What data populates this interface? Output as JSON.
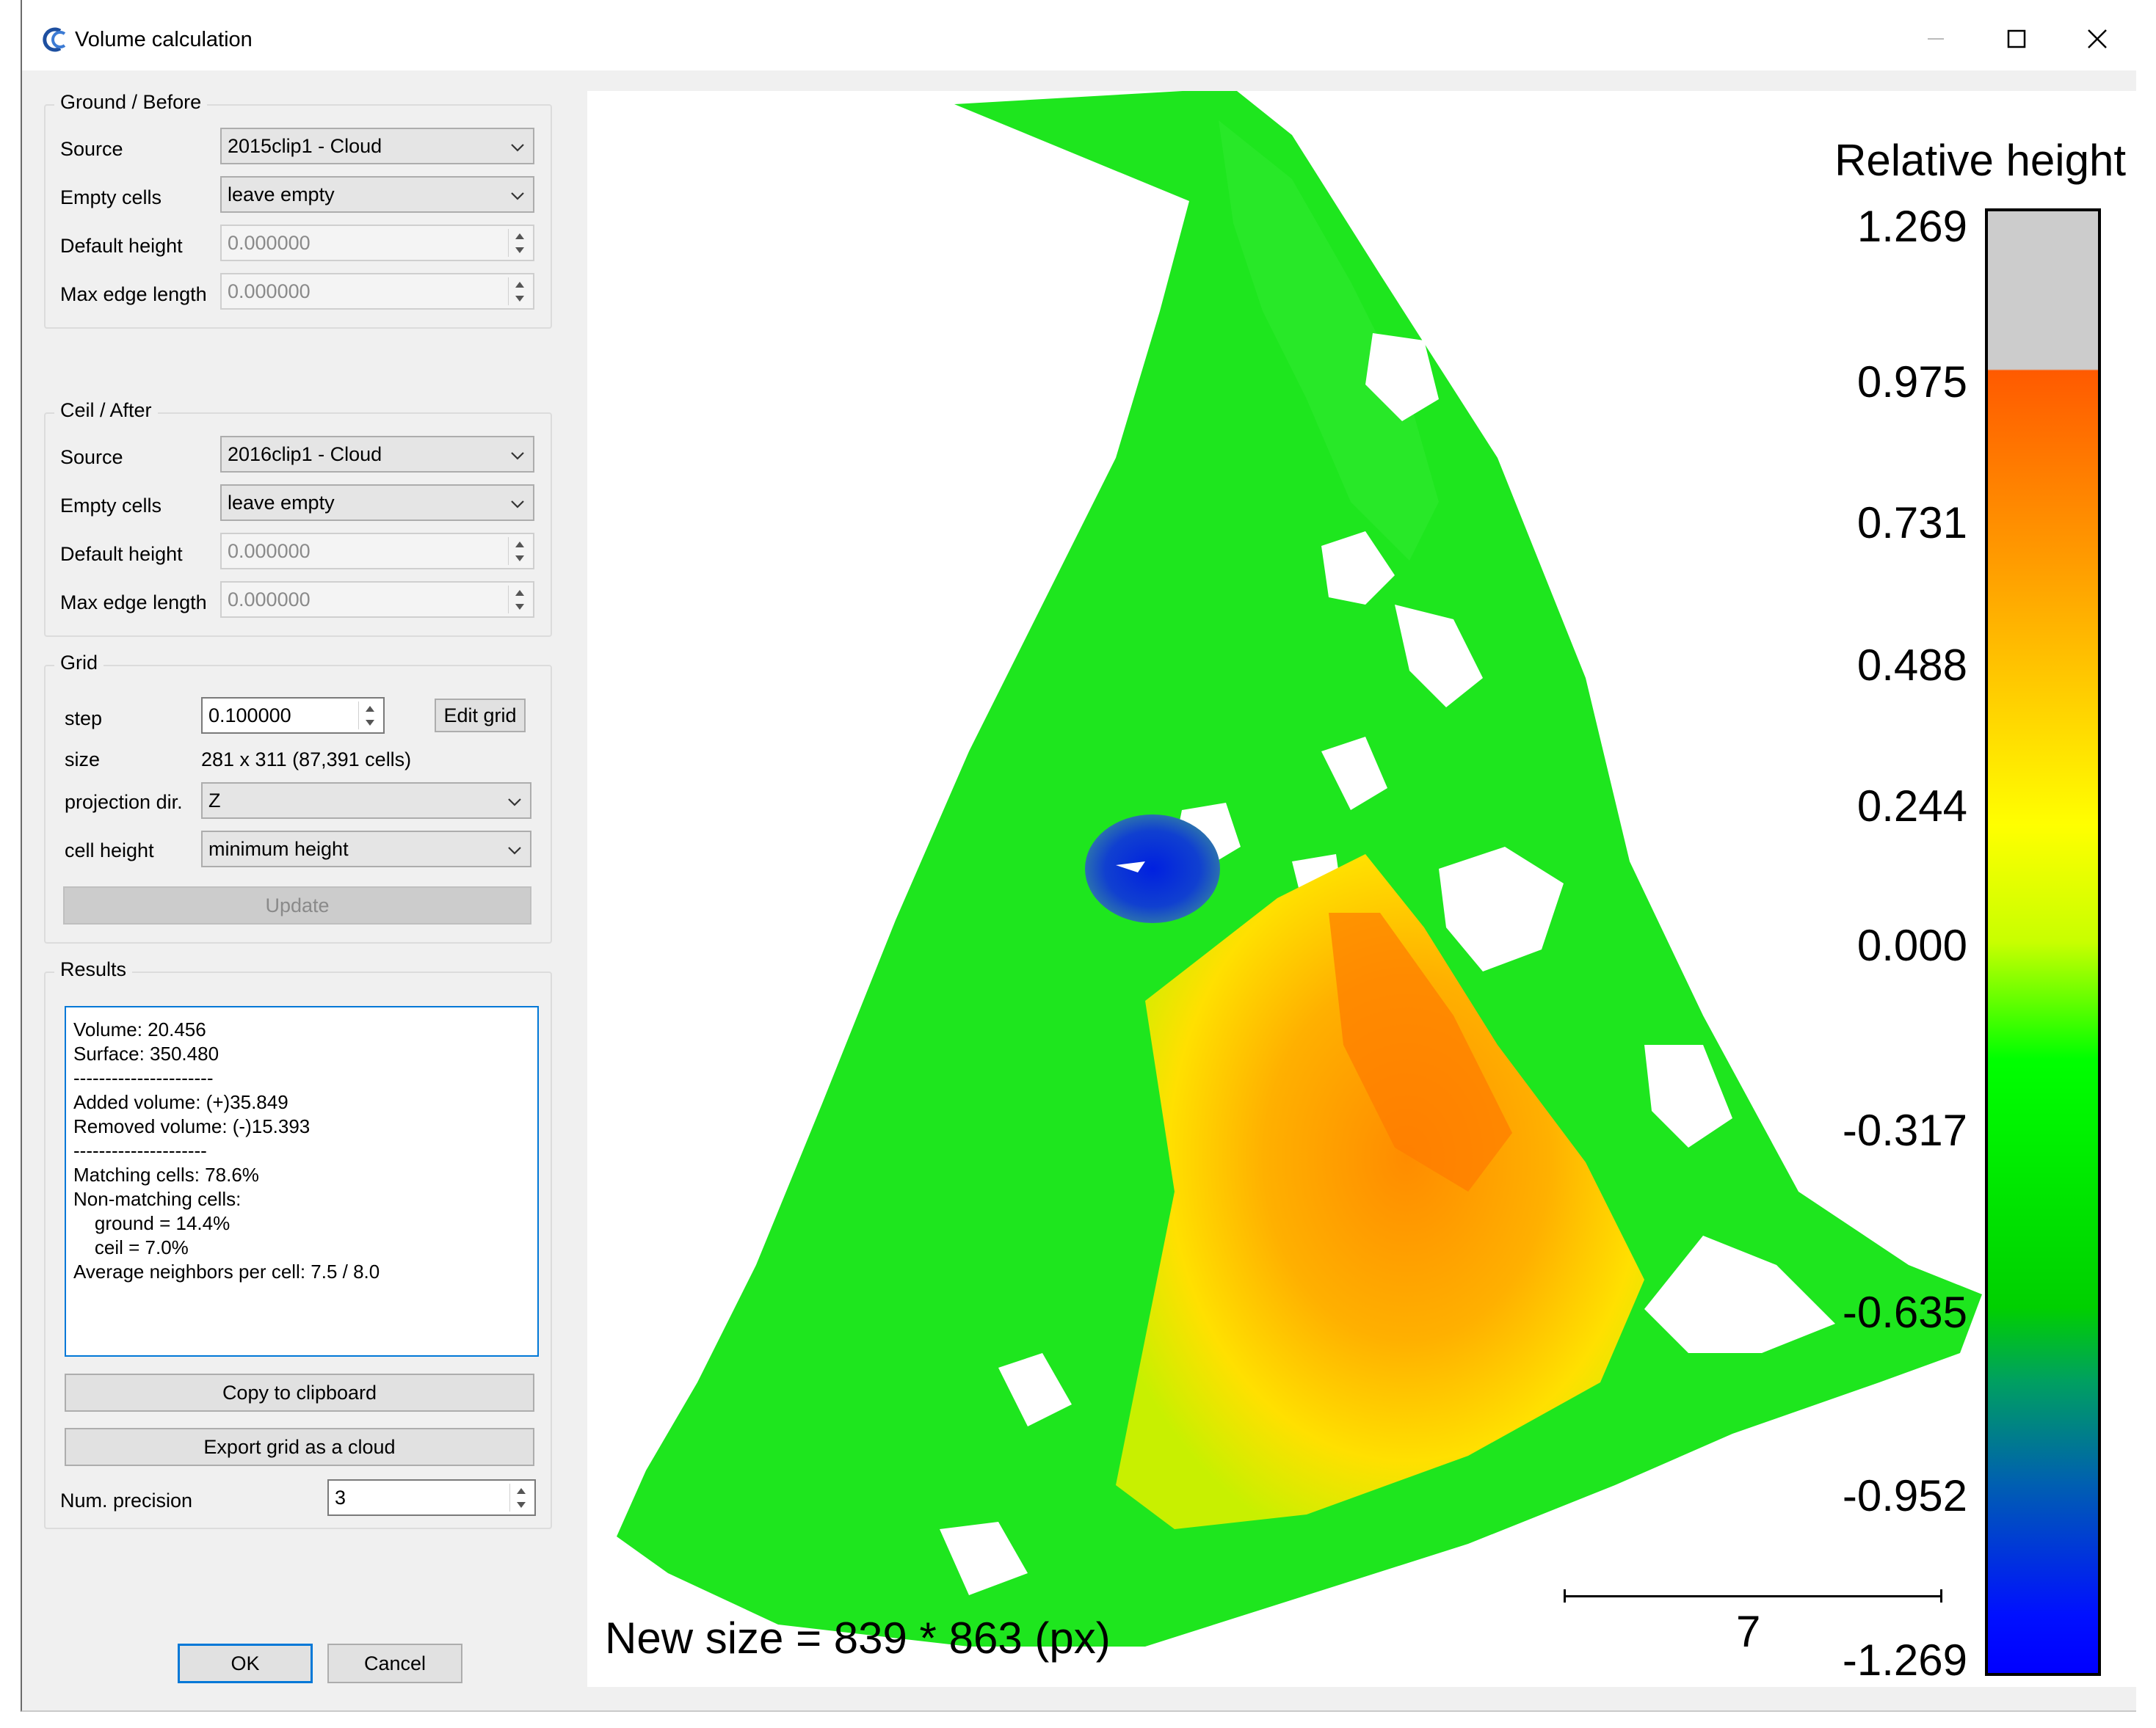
{
  "window": {
    "title": "Volume calculation"
  },
  "ground": {
    "title": "Ground / Before",
    "source_label": "Source",
    "source_value": "2015clip1 - Cloud",
    "empty_label": "Empty cells",
    "empty_value": "leave empty",
    "default_height_label": "Default height",
    "default_height_value": "0.000000",
    "max_edge_label": "Max edge length",
    "max_edge_value": "0.000000"
  },
  "ceil": {
    "title": "Ceil / After",
    "source_label": "Source",
    "source_value": "2016clip1 - Cloud",
    "empty_label": "Empty cells",
    "empty_value": "leave empty",
    "default_height_label": "Default height",
    "default_height_value": "0.000000",
    "max_edge_label": "Max edge length",
    "max_edge_value": "0.000000"
  },
  "grid": {
    "title": "Grid",
    "step_label": "step",
    "step_value": "0.100000",
    "edit_grid": "Edit grid",
    "size_label": "size",
    "size_value": "281 x 311 (87,391 cells)",
    "projection_label": "projection dir.",
    "projection_value": "Z",
    "cell_height_label": "cell height",
    "cell_height_value": "minimum height",
    "update": "Update"
  },
  "results": {
    "title": "Results",
    "text": "Volume: 20.456\nSurface: 350.480\n----------------------\nAdded volume: (+)35.849\nRemoved volume: (-)15.393\n---------------------\nMatching cells: 78.6%\nNon-matching cells:\n    ground = 14.4%\n    ceil = 7.0%\nAverage neighbors per cell: 7.5 / 8.0",
    "copy": "Copy to clipboard",
    "export": "Export grid as a cloud",
    "precision_label": "Num. precision",
    "precision_value": "3"
  },
  "footer": {
    "ok": "OK",
    "cancel": "Cancel"
  },
  "viewer": {
    "scale_title": "Relative height",
    "ticks": [
      "1.269",
      "0.975",
      "0.731",
      "0.488",
      "0.244",
      "0.000",
      "-0.317",
      "-0.635",
      "-0.952",
      "-1.269"
    ],
    "scale_value": "7",
    "size_text": "New size = 839 * 863 (px)"
  }
}
